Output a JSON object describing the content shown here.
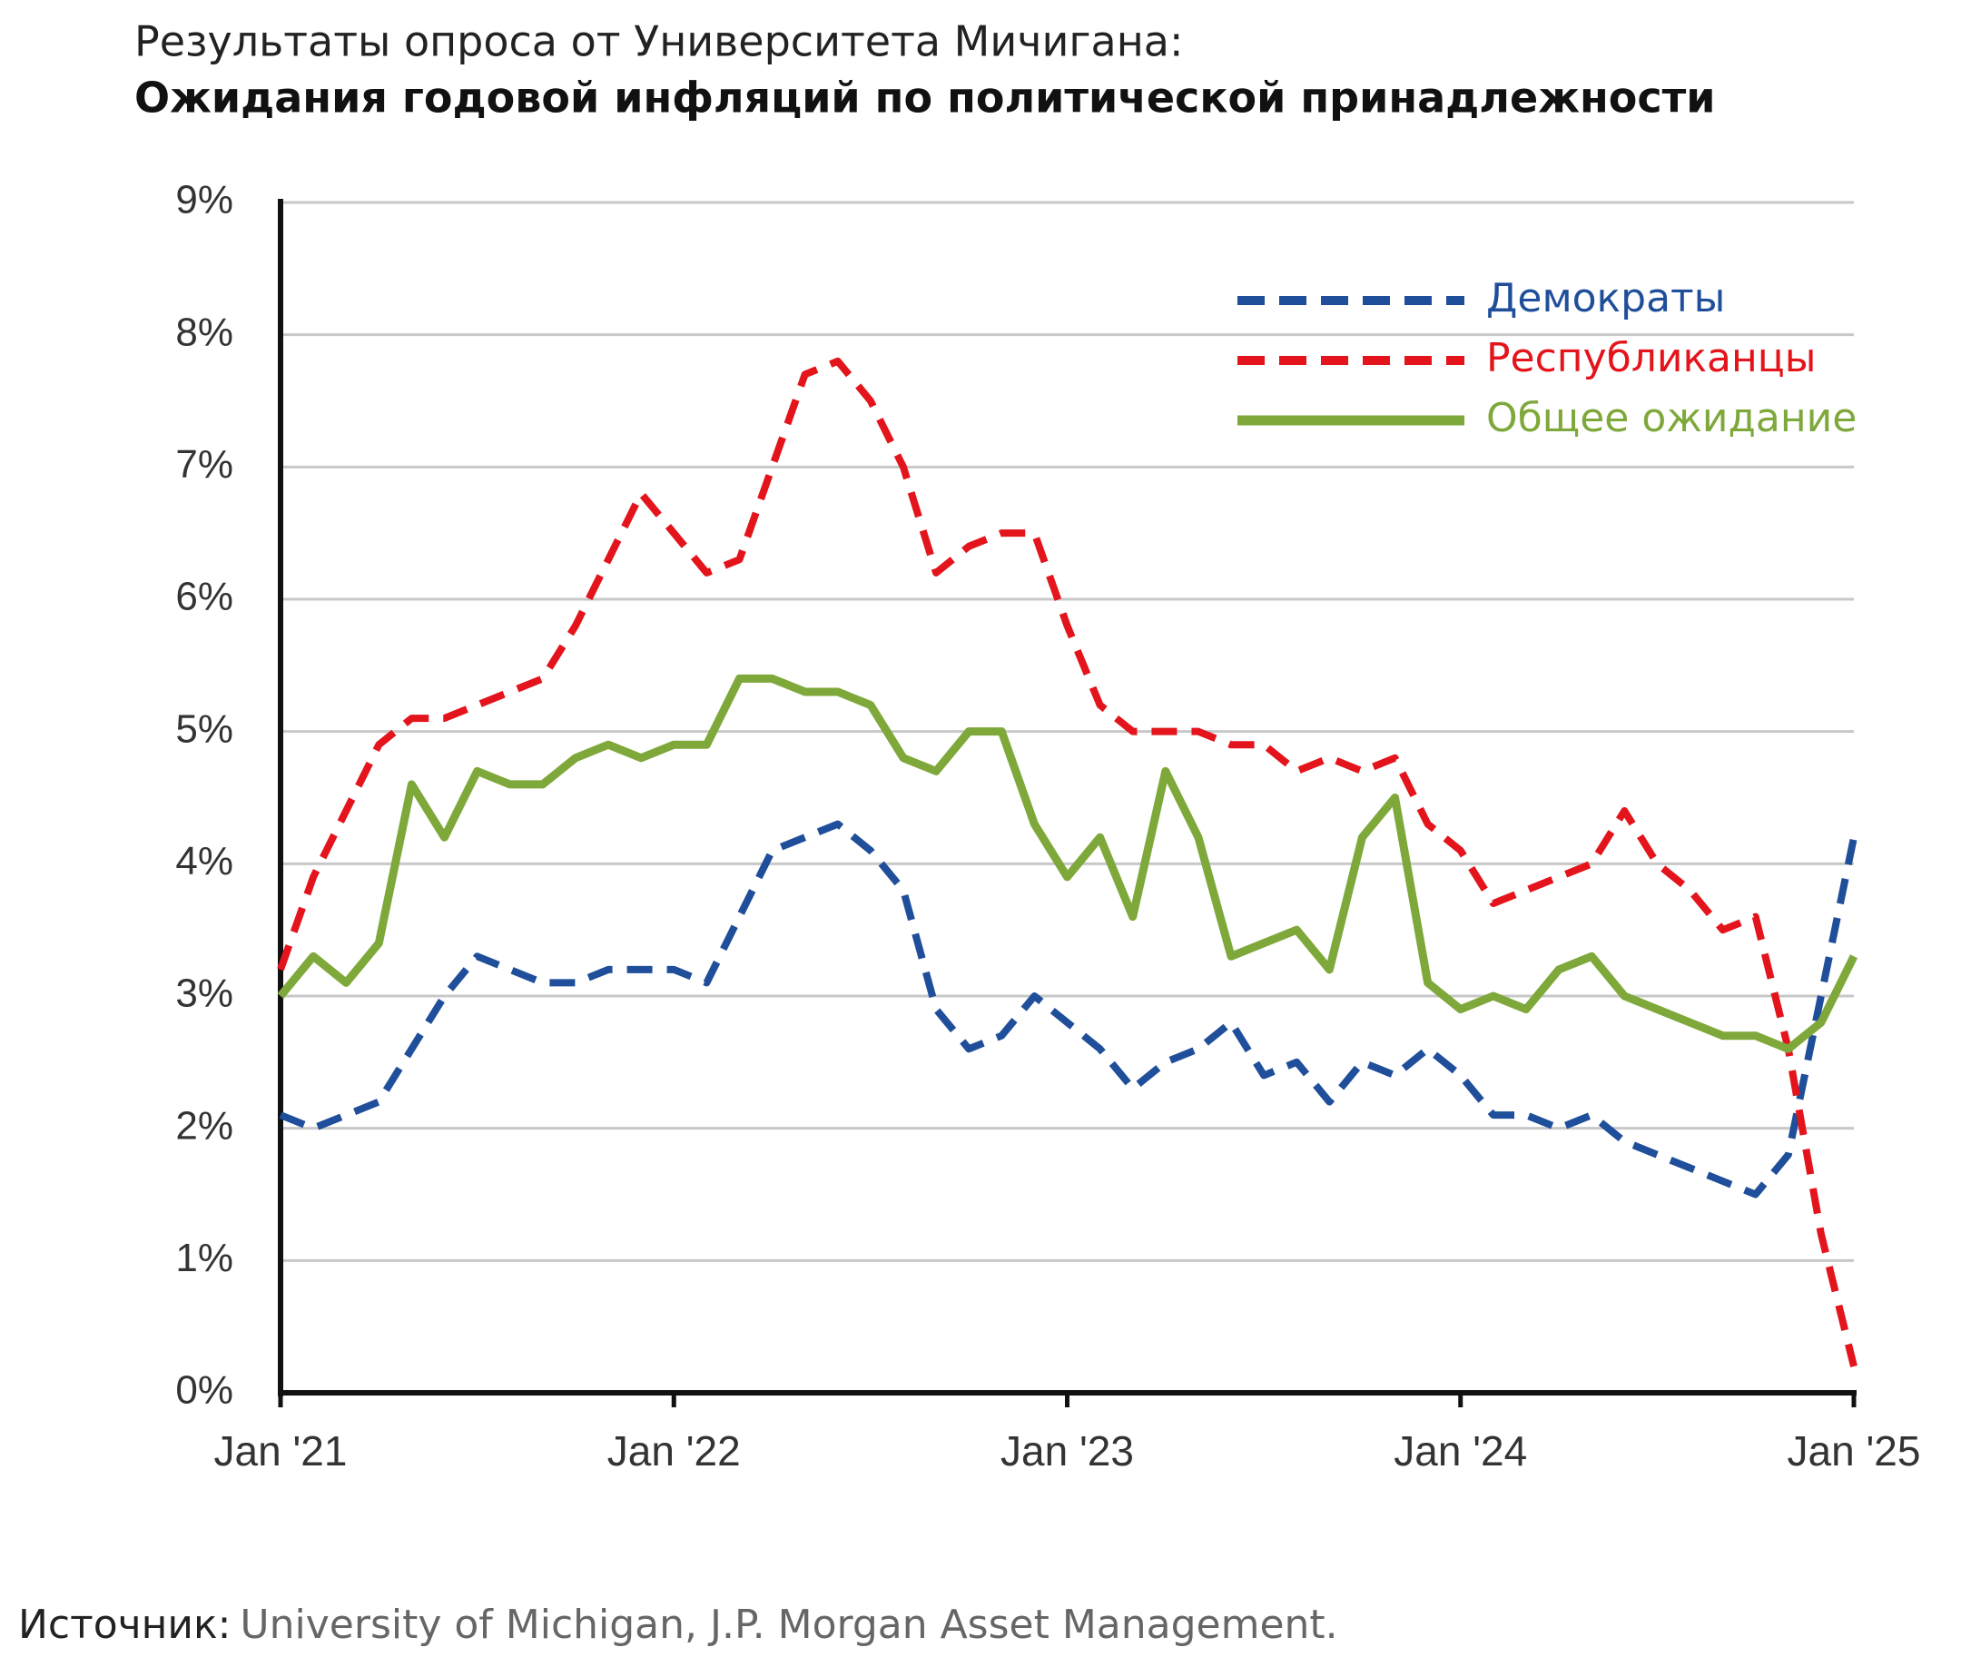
{
  "chart_data": {
    "type": "line",
    "title": "Результаты опроса от Университета Мичигана:",
    "subtitle": "Ожидания годовой инфляций по политической принадлежности",
    "source_label": "Источник:",
    "source_text": "University of Michigan, J.P. Morgan Asset Management.",
    "x": [
      "2021-01",
      "2021-02",
      "2021-03",
      "2021-04",
      "2021-05",
      "2021-06",
      "2021-07",
      "2021-08",
      "2021-09",
      "2021-10",
      "2021-11",
      "2021-12",
      "2022-01",
      "2022-02",
      "2022-03",
      "2022-04",
      "2022-05",
      "2022-06",
      "2022-07",
      "2022-08",
      "2022-09",
      "2022-10",
      "2022-11",
      "2022-12",
      "2023-01",
      "2023-02",
      "2023-03",
      "2023-04",
      "2023-05",
      "2023-06",
      "2023-07",
      "2023-08",
      "2023-09",
      "2023-10",
      "2023-11",
      "2023-12",
      "2024-01",
      "2024-02",
      "2024-03",
      "2024-04",
      "2024-05",
      "2024-06",
      "2024-07",
      "2024-08",
      "2024-09",
      "2024-10",
      "2024-11",
      "2024-12",
      "2025-01"
    ],
    "series": [
      {
        "name": "Демократы",
        "color": "#1f4e9a",
        "dashed": true,
        "values": [
          2.1,
          2.0,
          2.1,
          2.2,
          2.6,
          3.0,
          3.3,
          3.2,
          3.1,
          3.1,
          3.2,
          3.2,
          3.2,
          3.1,
          3.6,
          4.1,
          4.2,
          4.3,
          4.1,
          3.8,
          2.9,
          2.6,
          2.7,
          3.0,
          2.8,
          2.6,
          2.3,
          2.5,
          2.6,
          2.8,
          2.4,
          2.5,
          2.2,
          2.5,
          2.4,
          2.6,
          2.4,
          2.1,
          2.1,
          2.0,
          2.1,
          1.9,
          1.8,
          1.7,
          1.6,
          1.5,
          1.8,
          3.0,
          4.2
        ]
      },
      {
        "name": "Республиканцы",
        "color": "#e3141b",
        "dashed": true,
        "values": [
          3.2,
          3.9,
          4.4,
          4.9,
          5.1,
          5.1,
          5.2,
          5.3,
          5.4,
          5.8,
          6.3,
          6.8,
          6.5,
          6.2,
          6.3,
          7.0,
          7.7,
          7.8,
          7.5,
          7.0,
          6.2,
          6.4,
          6.5,
          6.5,
          5.8,
          5.2,
          5.0,
          5.0,
          5.0,
          4.9,
          4.9,
          4.7,
          4.8,
          4.7,
          4.8,
          4.3,
          4.1,
          3.7,
          3.8,
          3.9,
          4.0,
          4.4,
          4.0,
          3.8,
          3.5,
          3.6,
          2.6,
          1.2,
          0.2
        ]
      },
      {
        "name": "Общее ожидание",
        "color": "#7ea83a",
        "dashed": false,
        "values": [
          3.0,
          3.3,
          3.1,
          3.4,
          4.6,
          4.2,
          4.7,
          4.6,
          4.6,
          4.8,
          4.9,
          4.8,
          4.9,
          4.9,
          5.4,
          5.4,
          5.3,
          5.3,
          5.2,
          4.8,
          4.7,
          5.0,
          5.0,
          4.3,
          3.9,
          4.2,
          3.6,
          4.7,
          4.2,
          3.3,
          3.4,
          3.5,
          3.2,
          4.2,
          4.5,
          3.1,
          2.9,
          3.0,
          2.9,
          3.2,
          3.3,
          3.0,
          2.9,
          2.8,
          2.7,
          2.7,
          2.6,
          2.8,
          3.3
        ]
      }
    ],
    "xlim": [
      "2021-01",
      "2025-01"
    ],
    "xticks": [
      {
        "value": "2021-01",
        "label": "Jan '21"
      },
      {
        "value": "2022-01",
        "label": "Jan '22"
      },
      {
        "value": "2023-01",
        "label": "Jan '23"
      },
      {
        "value": "2024-01",
        "label": "Jan '24"
      },
      {
        "value": "2025-01",
        "label": "Jan '25"
      }
    ],
    "ylim": [
      0,
      9
    ],
    "yticks": [
      {
        "value": 0,
        "label": "0%"
      },
      {
        "value": 1,
        "label": "1%"
      },
      {
        "value": 2,
        "label": "2%"
      },
      {
        "value": 3,
        "label": "3%"
      },
      {
        "value": 4,
        "label": "4%"
      },
      {
        "value": 5,
        "label": "5%"
      },
      {
        "value": 6,
        "label": "6%"
      },
      {
        "value": 7,
        "label": "7%"
      },
      {
        "value": 8,
        "label": "8%"
      },
      {
        "value": 9,
        "label": "9%"
      }
    ],
    "grid": true,
    "legend": "top-right"
  }
}
